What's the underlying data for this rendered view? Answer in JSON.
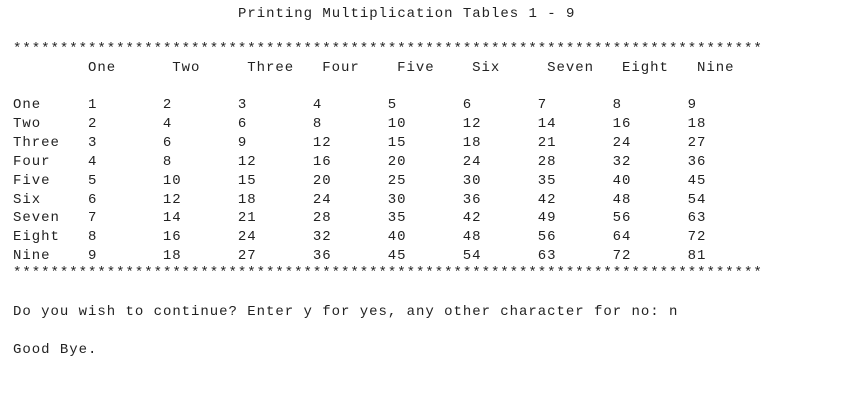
{
  "title": "Printing Multiplication Tables 1 - 9",
  "separator": "********************************************************************************",
  "column_headers": [
    "One",
    "Two",
    "Three",
    "Four",
    "Five",
    "Six",
    "Seven",
    "Eight",
    "Nine"
  ],
  "rows": [
    {
      "label": "One",
      "values": [
        "1",
        "2",
        "3",
        "4",
        "5",
        "6",
        "7",
        "8",
        "9"
      ]
    },
    {
      "label": "Two",
      "values": [
        "2",
        "4",
        "6",
        "8",
        "10",
        "12",
        "14",
        "16",
        "18"
      ]
    },
    {
      "label": "Three",
      "values": [
        "3",
        "6",
        "9",
        "12",
        "15",
        "18",
        "21",
        "24",
        "27"
      ]
    },
    {
      "label": "Four",
      "values": [
        "4",
        "8",
        "12",
        "16",
        "20",
        "24",
        "28",
        "32",
        "36"
      ]
    },
    {
      "label": "Five",
      "values": [
        "5",
        "10",
        "15",
        "20",
        "25",
        "30",
        "35",
        "40",
        "45"
      ]
    },
    {
      "label": "Six",
      "values": [
        "6",
        "12",
        "18",
        "24",
        "30",
        "36",
        "42",
        "48",
        "54"
      ]
    },
    {
      "label": "Seven",
      "values": [
        "7",
        "14",
        "21",
        "28",
        "35",
        "42",
        "49",
        "56",
        "63"
      ]
    },
    {
      "label": "Eight",
      "values": [
        "8",
        "16",
        "24",
        "32",
        "40",
        "48",
        "56",
        "64",
        "72"
      ]
    },
    {
      "label": "Nine",
      "values": [
        "9",
        "18",
        "27",
        "36",
        "45",
        "54",
        "63",
        "72",
        "81"
      ]
    }
  ],
  "prompt": "Do you wish to continue? Enter y for yes, any other character for no: n",
  "goodbye": "Good Bye."
}
